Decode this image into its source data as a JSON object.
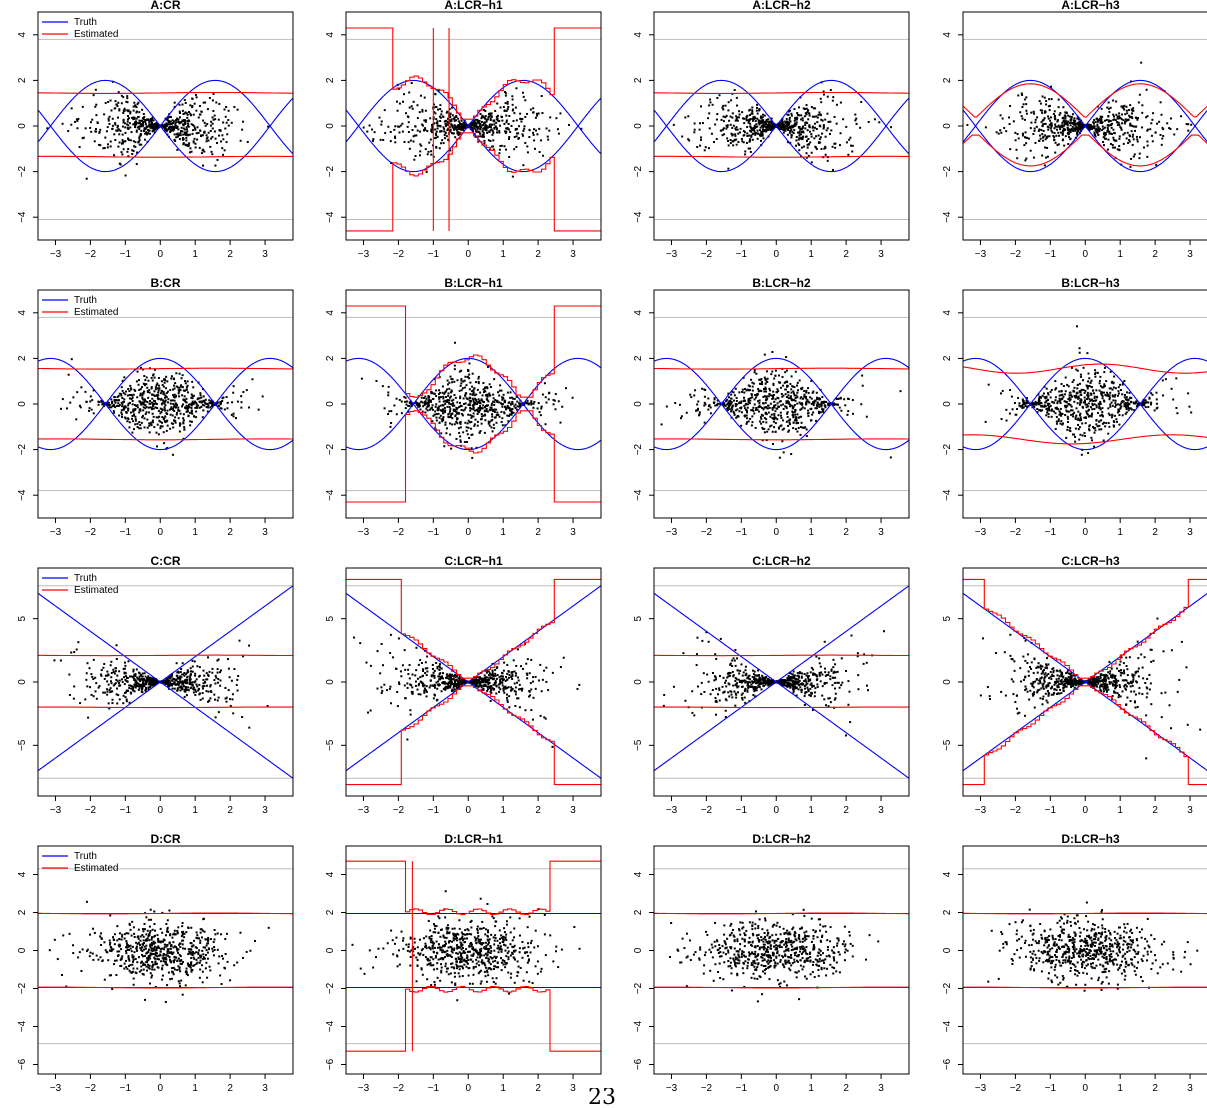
{
  "colors": {
    "truth": "#0000ff",
    "estimated": "#ff0000",
    "points": "#000000",
    "ref": "#bebebe"
  },
  "page_number": "23",
  "chart_data": [
    {
      "type": "scatter",
      "title": "A:CR",
      "scenario": "A",
      "method": "CR",
      "xlim": [
        -3.5,
        3.8
      ],
      "ylim": [
        -5,
        5
      ],
      "yticks": [
        -4,
        -2,
        0,
        2,
        4
      ],
      "truth": "sine",
      "legend": true,
      "legend_labels": [
        "Truth",
        "Estimated"
      ],
      "ref_lines": [
        3.8,
        -4.1
      ],
      "estimated": {
        "style": "flat",
        "upper": 1.45,
        "lower": -1.35
      }
    },
    {
      "type": "scatter",
      "title": "A:LCR−h1",
      "scenario": "A",
      "method": "LCR-h1",
      "xlim": [
        -3.5,
        3.8
      ],
      "ylim": [
        -5,
        5
      ],
      "yticks": [
        -4,
        -2,
        0,
        2,
        4
      ],
      "truth": "sine",
      "legend": false,
      "ref_lines": [
        3.8,
        -4.1
      ],
      "estimated": {
        "style": "step",
        "cap": 4.3,
        "lowcap": -4.6,
        "edge_left": -2.2,
        "edge_right": 2.4,
        "spikes": [
          -1.0,
          -0.55
        ]
      }
    },
    {
      "type": "scatter",
      "title": "A:LCR−h2",
      "scenario": "A",
      "method": "LCR-h2",
      "xlim": [
        -3.5,
        3.8
      ],
      "ylim": [
        -5,
        5
      ],
      "yticks": [
        -4,
        -2,
        0,
        2,
        4
      ],
      "truth": "sine",
      "legend": false,
      "ref_lines": [
        3.8,
        -4.1
      ],
      "estimated": {
        "style": "flat",
        "upper": 1.45,
        "lower": -1.35
      }
    },
    {
      "type": "scatter",
      "title": "A:LCR−h3",
      "scenario": "A",
      "method": "LCR-h3",
      "xlim": [
        -3.5,
        3.8
      ],
      "ylim": [
        -5,
        5
      ],
      "yticks": [
        -4,
        -2,
        0,
        2,
        4
      ],
      "truth": "sine",
      "legend": false,
      "ref_lines": [
        3.8,
        -4.1
      ],
      "estimated": {
        "style": "smooth",
        "scale": 1.5,
        "floor": 0.4
      }
    },
    {
      "type": "scatter",
      "title": "B:CR",
      "scenario": "B",
      "method": "CR",
      "xlim": [
        -3.5,
        3.8
      ],
      "ylim": [
        -5,
        5
      ],
      "yticks": [
        -4,
        -2,
        0,
        2,
        4
      ],
      "truth": "cosine",
      "legend": true,
      "legend_labels": [
        "Truth",
        "Estimated"
      ],
      "ref_lines": [
        3.8,
        -3.8
      ],
      "estimated": {
        "style": "flat",
        "upper": 1.55,
        "lower": -1.55
      }
    },
    {
      "type": "scatter",
      "title": "B:LCR−h1",
      "scenario": "B",
      "method": "LCR-h1",
      "xlim": [
        -3.5,
        3.8
      ],
      "ylim": [
        -5,
        5
      ],
      "yticks": [
        -4,
        -2,
        0,
        2,
        4
      ],
      "truth": "cosine",
      "legend": false,
      "ref_lines": [
        3.8,
        -3.8
      ],
      "estimated": {
        "style": "step",
        "cap": 4.3,
        "lowcap": -4.3,
        "edge_left": -1.9,
        "edge_right": 2.4,
        "spikes": []
      }
    },
    {
      "type": "scatter",
      "title": "B:LCR−h2",
      "scenario": "B",
      "method": "LCR-h2",
      "xlim": [
        -3.5,
        3.8
      ],
      "ylim": [
        -5,
        5
      ],
      "yticks": [
        -4,
        -2,
        0,
        2,
        4
      ],
      "truth": "cosine",
      "legend": false,
      "ref_lines": [
        3.8,
        -3.8
      ],
      "estimated": {
        "style": "flat",
        "upper": 1.55,
        "lower": -1.55
      }
    },
    {
      "type": "scatter",
      "title": "B:LCR−h3",
      "scenario": "B",
      "method": "LCR-h3",
      "xlim": [
        -3.5,
        3.8
      ],
      "ylim": [
        -5,
        5
      ],
      "yticks": [
        -4,
        -2,
        0,
        2,
        4
      ],
      "truth": "cosine",
      "legend": false,
      "ref_lines": [
        3.8,
        -3.8
      ],
      "estimated": {
        "style": "wavy",
        "base": 1.55,
        "amp": 0.2
      }
    },
    {
      "type": "scatter",
      "title": "C:CR",
      "scenario": "C",
      "method": "CR",
      "xlim": [
        -3.5,
        3.8
      ],
      "ylim": [
        -9,
        9
      ],
      "yticks": [
        -5,
        0,
        5
      ],
      "truth": "linear",
      "legend": true,
      "legend_labels": [
        "Truth",
        "Estimated"
      ],
      "ref_lines": [
        7.6,
        -7.6
      ],
      "estimated": {
        "style": "flat",
        "upper": 2.1,
        "lower": -2.0
      }
    },
    {
      "type": "scatter",
      "title": "C:LCR−h1",
      "scenario": "C",
      "method": "LCR-h1",
      "xlim": [
        -3.5,
        3.8
      ],
      "ylim": [
        -9,
        9
      ],
      "yticks": [
        -5,
        0,
        5
      ],
      "truth": "linear",
      "legend": false,
      "ref_lines": [
        7.6,
        -7.6
      ],
      "estimated": {
        "style": "step",
        "cap": 8.1,
        "lowcap": -8.1,
        "edge_left": -2.0,
        "edge_right": 2.4,
        "spikes": []
      }
    },
    {
      "type": "scatter",
      "title": "C:LCR−h2",
      "scenario": "C",
      "method": "LCR-h2",
      "xlim": [
        -3.5,
        3.8
      ],
      "ylim": [
        -9,
        9
      ],
      "yticks": [
        -5,
        0,
        5
      ],
      "truth": "linear",
      "legend": false,
      "ref_lines": [
        7.6,
        -7.6
      ],
      "estimated": {
        "style": "flat",
        "upper": 2.1,
        "lower": -2.0
      }
    },
    {
      "type": "scatter",
      "title": "C:LCR−h3",
      "scenario": "C",
      "method": "LCR-h3",
      "xlim": [
        -3.5,
        3.8
      ],
      "ylim": [
        -9,
        9
      ],
      "yticks": [
        -5,
        0,
        5
      ],
      "truth": "linear",
      "legend": false,
      "ref_lines": [
        7.6,
        -7.6
      ],
      "estimated": {
        "style": "step",
        "cap": 8.1,
        "lowcap": -8.1,
        "edge_left": -2.9,
        "edge_right": 2.9,
        "spikes": []
      }
    },
    {
      "type": "scatter",
      "title": "D:CR",
      "scenario": "D",
      "method": "CR",
      "xlim": [
        -3.5,
        3.8
      ],
      "ylim": [
        -6.5,
        5.5
      ],
      "yticks": [
        -6,
        -4,
        -2,
        0,
        2,
        4
      ],
      "truth": "constant",
      "legend": true,
      "legend_labels": [
        "Truth",
        "Estimated"
      ],
      "ref_lines": [
        4.3,
        -4.9
      ],
      "estimated": {
        "style": "flat",
        "upper": 1.95,
        "lower": -1.95
      }
    },
    {
      "type": "scatter",
      "title": "D:LCR−h1",
      "scenario": "D",
      "method": "LCR-h1",
      "xlim": [
        -3.5,
        3.8
      ],
      "ylim": [
        -6.5,
        5.5
      ],
      "yticks": [
        -6,
        -4,
        -2,
        0,
        2,
        4
      ],
      "truth": "constant",
      "legend": false,
      "ref_lines": [
        4.3,
        -4.9
      ],
      "estimated": {
        "style": "step",
        "cap": 4.7,
        "lowcap": -5.3,
        "edge_left": -1.9,
        "edge_right": 2.3,
        "spikes": [
          -1.6
        ]
      }
    },
    {
      "type": "scatter",
      "title": "D:LCR−h2",
      "scenario": "D",
      "method": "LCR-h2",
      "xlim": [
        -3.5,
        3.8
      ],
      "ylim": [
        -6.5,
        5.5
      ],
      "yticks": [
        -6,
        -4,
        -2,
        0,
        2,
        4
      ],
      "truth": "constant",
      "legend": false,
      "ref_lines": [
        4.3,
        -4.9
      ],
      "estimated": {
        "style": "flat",
        "upper": 1.95,
        "lower": -1.95
      }
    },
    {
      "type": "scatter",
      "title": "D:LCR−h3",
      "scenario": "D",
      "method": "LCR-h3",
      "xlim": [
        -3.5,
        3.8
      ],
      "ylim": [
        -6.5,
        5.5
      ],
      "yticks": [
        -6,
        -4,
        -2,
        0,
        2,
        4
      ],
      "truth": "constant",
      "legend": false,
      "ref_lines": [
        4.3,
        -4.9
      ],
      "estimated": {
        "style": "flat",
        "upper": 1.95,
        "lower": -1.95
      }
    }
  ],
  "xticks": [
    -3,
    -2,
    -1,
    0,
    1,
    2,
    3
  ]
}
